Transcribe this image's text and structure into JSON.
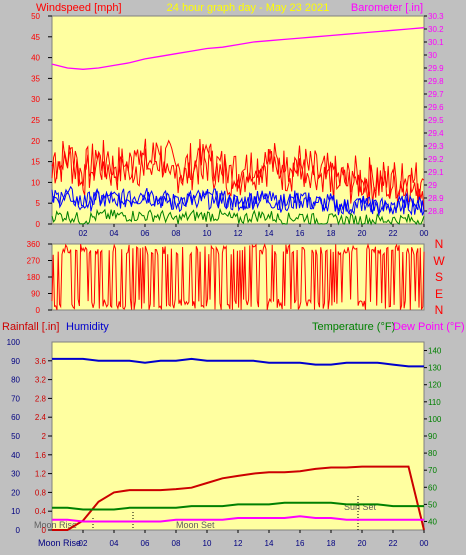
{
  "header": {
    "left_title": "Windspeed [mph]",
    "center_title": "24 hour graph day - May 23 2021",
    "right_title": "Barometer [.in]"
  },
  "direction_labels": [
    "N",
    "W",
    "S",
    "E",
    "N"
  ],
  "bottom_header": {
    "rainfall": "Rainfall [.in]",
    "humidity": "Humidity",
    "temperature": "Temperature (°F)",
    "dew_point": "Dew Point (°F)"
  },
  "annotations": {
    "moon_rise": "Moon Rise",
    "moon_set": "Moon Set",
    "sun_set": "Sun Set",
    "moon_rise_footer": "Moon Rise"
  },
  "colors": {
    "plot_bg": "#ffffa0",
    "frame_bg": "#c0c0c0",
    "wind_gust": "#ff0000",
    "wind_avg": "#0000ff",
    "wind_low": "#008000",
    "barometer": "#ff00ff",
    "direction": "#ff0000",
    "rainfall": "#cc0000",
    "humidity": "#0000cc",
    "temperature": "#008000",
    "dew_point": "#ff00ff",
    "header_left": "#ff0000",
    "header_center": "#ffff00",
    "header_right": "#ff00ff",
    "humidity_label": "#0000cc",
    "temperature_label": "#008000",
    "dew_label": "#ff00ff"
  },
  "chart_data": [
    {
      "type": "line",
      "name": "wind",
      "x_ticks": [
        "02",
        "04",
        "06",
        "08",
        "10",
        "12",
        "14",
        "16",
        "18",
        "20",
        "22",
        "00"
      ],
      "y_left_ticks": [
        "0",
        "5",
        "10",
        "15",
        "20",
        "25",
        "30",
        "35",
        "40",
        "45",
        "50"
      ],
      "ylim_left": [
        0,
        50
      ],
      "y_right_ticks": [
        "28.8",
        "28.9",
        "29",
        "29.1",
        "29.2",
        "29.3",
        "29.4",
        "29.5",
        "29.6",
        "29.7",
        "29.8",
        "29.9",
        "30",
        "30.1",
        "30.2",
        "30.3"
      ],
      "ylim_right": [
        28.7,
        30.3
      ],
      "series": [
        {
          "key": "gust",
          "values": [
            14,
            16,
            12,
            15,
            13,
            14,
            15,
            16,
            13,
            14,
            15,
            13,
            12,
            14,
            15,
            13,
            14,
            12,
            11,
            10,
            11,
            10,
            10,
            11,
            9
          ]
        },
        {
          "key": "avg",
          "values": [
            6,
            7,
            5,
            6,
            6,
            6,
            7,
            6,
            5,
            6,
            6,
            6,
            5,
            6,
            6,
            5,
            6,
            5,
            5,
            4,
            5,
            4,
            4,
            5,
            4
          ]
        },
        {
          "key": "low",
          "values": [
            2,
            2,
            1,
            2,
            2,
            2,
            2,
            2,
            1,
            2,
            2,
            2,
            1,
            2,
            2,
            1,
            2,
            1,
            1,
            1,
            1,
            1,
            1,
            1,
            1
          ]
        },
        {
          "key": "barometer",
          "values": [
            29.93,
            29.9,
            29.89,
            29.9,
            29.92,
            29.94,
            29.97,
            29.99,
            30.01,
            30.03,
            30.05,
            30.06,
            30.08,
            30.1,
            30.11,
            30.12,
            30.13,
            30.14,
            30.15,
            30.16,
            30.17,
            30.18,
            30.19,
            30.2,
            30.21
          ]
        }
      ]
    },
    {
      "type": "line",
      "name": "wind_direction",
      "y_ticks": [
        "0",
        "90",
        "180",
        "270",
        "360"
      ],
      "ylim": [
        0,
        360
      ],
      "values": [
        10,
        350,
        30,
        340,
        5,
        355,
        20,
        345,
        15,
        330,
        25,
        350,
        10,
        340,
        30,
        355,
        5,
        345,
        20,
        335,
        15,
        350,
        10,
        340,
        20
      ]
    },
    {
      "type": "line",
      "name": "rain_humidity_temp",
      "y_left_outer_ticks": [
        "0",
        "10",
        "20",
        "30",
        "40",
        "50",
        "60",
        "70",
        "80",
        "90",
        "100"
      ],
      "y_left_inner_ticks": [
        "0",
        "0.4",
        "0.8",
        "1.2",
        "1.6",
        "2",
        "2.4",
        "2.8",
        "3.2",
        "3.6"
      ],
      "ylim_rain": [
        0,
        4
      ],
      "y_right_ticks": [
        "40",
        "50",
        "60",
        "70",
        "80",
        "90",
        "100",
        "110",
        "120",
        "130",
        "140"
      ],
      "ylim_temp": [
        35,
        145
      ],
      "series": [
        {
          "key": "rainfall",
          "values": [
            0.0,
            0.0,
            0.2,
            0.6,
            0.8,
            0.85,
            0.85,
            0.85,
            0.87,
            0.9,
            1.0,
            1.1,
            1.15,
            1.2,
            1.23,
            1.23,
            1.25,
            1.3,
            1.33,
            1.33,
            1.35,
            1.35,
            1.35,
            1.35,
            0.0
          ]
        },
        {
          "key": "humidity",
          "values": [
            91,
            91,
            91,
            90,
            90,
            90,
            89,
            90,
            90,
            91,
            90,
            90,
            90,
            90,
            89,
            89,
            89,
            88,
            88,
            89,
            89,
            89,
            88,
            87,
            87
          ]
        },
        {
          "key": "temperature",
          "values": [
            48,
            48,
            47,
            47,
            47,
            48,
            48,
            48,
            48,
            49,
            49,
            49,
            50,
            50,
            50,
            51,
            51,
            51,
            51,
            50,
            50,
            50,
            49,
            49,
            49
          ]
        },
        {
          "key": "dew_point",
          "values": [
            41,
            41,
            40,
            40,
            40,
            40,
            40,
            40,
            41,
            41,
            41,
            41,
            42,
            42,
            42,
            42,
            43,
            42,
            42,
            41,
            41,
            41,
            41,
            41,
            41
          ]
        }
      ]
    }
  ]
}
